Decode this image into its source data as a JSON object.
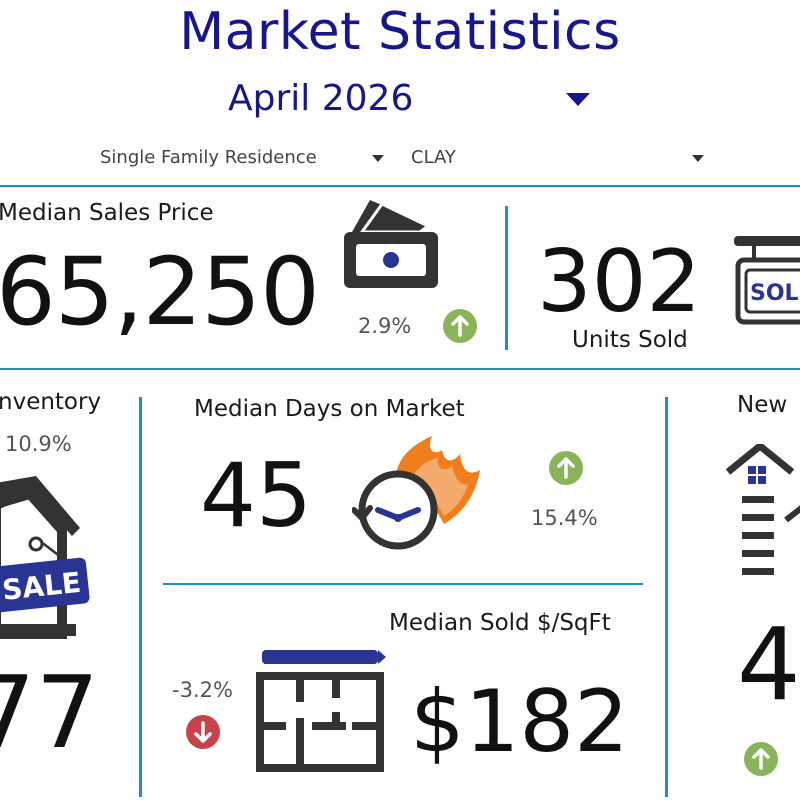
{
  "header": {
    "title": "Market Statistics",
    "period": "April 2026"
  },
  "filters": {
    "property_type": "Single Family Residence",
    "county": "CLAY"
  },
  "median_sales_price": {
    "label": "Median Sales Price",
    "value": "65,250",
    "change": "2.9%",
    "trend": "up"
  },
  "units_sold": {
    "value": "302",
    "label": "Units Sold",
    "sign_text": "SOL"
  },
  "inventory": {
    "label": "nventory",
    "change": "10.9%",
    "value": "77",
    "sign_text": "SALE"
  },
  "median_days_on_market": {
    "label": "Median Days on Market",
    "value": "45",
    "change": "15.4%",
    "trend": "up"
  },
  "median_sold_sqft": {
    "label": "Median Sold $/SqFt",
    "value": "$182",
    "change": "-3.2%",
    "trend": "down"
  },
  "new_listings": {
    "label": "New",
    "value": "4",
    "trend": "up"
  },
  "colors": {
    "title": "#16168e",
    "rule": "#1f8fc0",
    "up": "#8ab45a",
    "down": "#c8424a",
    "icon_dark": "#333333",
    "icon_blue": "#2a3593",
    "flame": "#f07e1c"
  },
  "icons": [
    "money-icon",
    "sold-sign-icon",
    "house-sale-icon",
    "clock-fire-icon",
    "floor-plan-icon",
    "house-tower-icon",
    "arrow-up-icon",
    "arrow-down-icon",
    "caret-down-icon"
  ]
}
